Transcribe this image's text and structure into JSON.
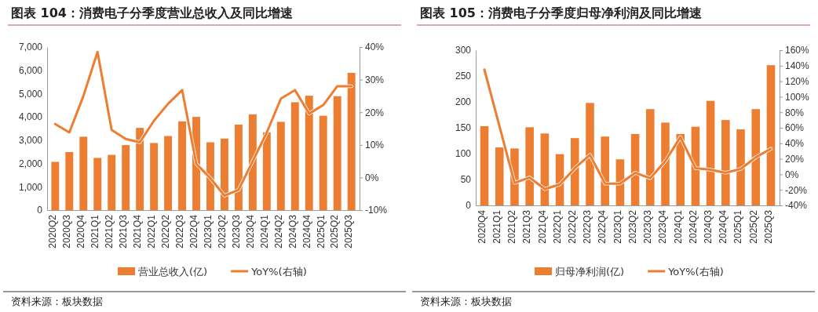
{
  "chart_data": [
    {
      "type": "bar",
      "title": "图表 104：消费电子分季度营业总收入及同比增速",
      "categories": [
        "2020Q2",
        "2020Q3",
        "2020Q4",
        "2021Q1",
        "2021Q2",
        "2021Q3",
        "2021Q4",
        "2022Q1",
        "2022Q2",
        "2022Q3",
        "2022Q4",
        "2023Q1",
        "2023Q2",
        "2023Q3",
        "2023Q4",
        "2024Q1",
        "2024Q2",
        "2024Q3",
        "2024Q4",
        "2025Q1",
        "2025Q2",
        "2025Q3"
      ],
      "series": [
        {
          "name": "营业总收入(亿)",
          "color": "#ed7d31",
          "values": [
            2070,
            2490,
            3150,
            2240,
            2370,
            2790,
            3530,
            2880,
            3180,
            3810,
            4000,
            2910,
            3070,
            3670,
            4110,
            3340,
            3790,
            4630,
            4910,
            4050,
            4890,
            5890
          ]
        },
        {
          "name": "YoY%(右轴)",
          "type": "line",
          "axis": "y2",
          "color": "#ed7d31",
          "values": [
            16.4,
            13.8,
            25,
            38.5,
            14.6,
            11.8,
            10.8,
            17.4,
            22.6,
            26.8,
            4.2,
            -0.2,
            -5.6,
            -3.8,
            5,
            13.8,
            24.2,
            26.8,
            19.6,
            22.2,
            28,
            28
          ]
        }
      ],
      "ylim": [
        0,
        7000
      ],
      "yticks": [
        0,
        {
          "value": 1000,
          "label": "1,000"
        },
        {
          "value": 2000,
          "label": "2,000"
        },
        {
          "value": 3000,
          "label": "3,000"
        },
        {
          "value": 4000,
          "label": "4,000"
        },
        {
          "value": 5000,
          "label": "5,000"
        },
        {
          "value": 6000,
          "label": "6,000"
        },
        {
          "value": 7000,
          "label": "7,000"
        }
      ],
      "y2lim": [
        -10,
        40
      ],
      "y2ticks": [
        {
          "value": -10,
          "label": "-10%"
        },
        {
          "value": 0,
          "label": "0%"
        },
        {
          "value": 10,
          "label": "10%"
        },
        {
          "value": 20,
          "label": "20%"
        },
        {
          "value": 30,
          "label": "30%"
        },
        {
          "value": 40,
          "label": "40%"
        }
      ],
      "legend": "bottom",
      "annotations": [
        "资料来源：板块数据"
      ]
    },
    {
      "type": "bar",
      "title": "图表 105：消费电子分季度归母净利润及同比增速",
      "categories": [
        "2020Q4",
        "2021Q1",
        "2021Q2",
        "2021Q3",
        "2021Q4",
        "2022Q1",
        "2022Q2",
        "2022Q3",
        "2022Q4",
        "2023Q1",
        "2023Q2",
        "2023Q3",
        "2023Q4",
        "2024Q1",
        "2024Q2",
        "2024Q3",
        "2024Q4",
        "2025Q1",
        "2025Q2",
        "2025Q3"
      ],
      "series": [
        {
          "name": "归母净利润(亿)",
          "color": "#ed7d31",
          "values": [
            153,
            112,
            110,
            151,
            139,
            99,
            130,
            198,
            133,
            89,
            138,
            186,
            160,
            138,
            152,
            202,
            165,
            147,
            186,
            271
          ]
        },
        {
          "name": "YoY%(右轴)",
          "type": "line",
          "axis": "y2",
          "color": "#ed7d31",
          "values": [
            135,
            62,
            -11,
            -4,
            -19,
            -13,
            8,
            25,
            -12,
            -12,
            2,
            -5,
            17,
            48,
            8,
            6,
            2,
            7,
            22,
            33
          ]
        }
      ],
      "ylim": [
        0,
        300
      ],
      "yticks": [
        0,
        50,
        100,
        150,
        200,
        250,
        300
      ],
      "y2lim": [
        -40,
        160
      ],
      "y2ticks": [
        {
          "value": -40,
          "label": "-40%"
        },
        {
          "value": -20,
          "label": "-20%"
        },
        {
          "value": 0,
          "label": "0%"
        },
        {
          "value": 20,
          "label": "20%"
        },
        {
          "value": 40,
          "label": "40%"
        },
        {
          "value": 60,
          "label": "60%"
        },
        {
          "value": 80,
          "label": "80%"
        },
        {
          "value": 100,
          "label": "100%"
        },
        {
          "value": 120,
          "label": "120%"
        },
        {
          "value": 140,
          "label": "140%"
        },
        {
          "value": 160,
          "label": "160%"
        }
      ],
      "legend": "bottom",
      "annotations": [
        "资料来源：板块数据"
      ]
    }
  ]
}
